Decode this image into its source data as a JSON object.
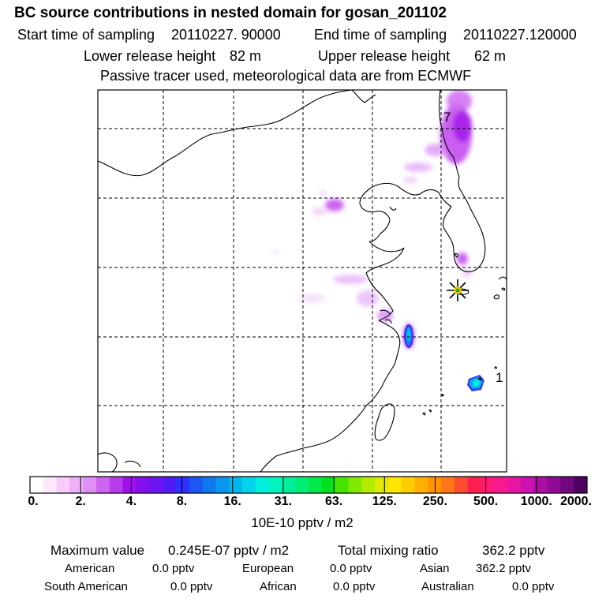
{
  "header": {
    "title": "BC  source contributions in nested domain for gosan_201102",
    "start_label": "Start time of sampling",
    "start_value": "20110227. 90000",
    "end_label": "End time of sampling",
    "end_value": "20110227.120000",
    "lower_label": "Lower release height",
    "lower_value": "82 m",
    "upper_label": "Upper release height",
    "upper_value": "62 m",
    "tracer_note": "Passive tracer used, meteorological data are from ECMWF"
  },
  "map": {
    "labels": {
      "top": "7",
      "right": "1"
    },
    "station_marker": "star-marker"
  },
  "colorbar": {
    "ticks": [
      "0.",
      "2.",
      "4.",
      "8.",
      "16.",
      "31.",
      "63.",
      "125.",
      "250.",
      "500.",
      "1000.",
      "2000."
    ],
    "colors": [
      "#ffffff",
      "#fce8fc",
      "#f8ccfa",
      "#f0b0f8",
      "#e090f4",
      "#cc66f0",
      "#b83cee",
      "#a010ec",
      "#8410ee",
      "#6c14f2",
      "#4f1cf6",
      "#3030fa",
      "#1e56f4",
      "#1078ee",
      "#0896ee",
      "#00b6f0",
      "#00d6e8",
      "#00f0e0",
      "#00f4c0",
      "#00f09a",
      "#00ee76",
      "#00e84a",
      "#00e020",
      "#44e400",
      "#80ea00",
      "#b4ec00",
      "#e0ea00",
      "#ffe400",
      "#ffcc00",
      "#ffb000",
      "#ff9400",
      "#ff7818",
      "#ff4c30",
      "#ff2050",
      "#ff1a72",
      "#f81890",
      "#e814a4",
      "#cc12b0",
      "#ac0ea4",
      "#900a96",
      "#720880",
      "#4c0460"
    ],
    "units": "10E-10 pptv / m2"
  },
  "stats": {
    "max_label": "Maximum value",
    "max_value": "0.245E-07 pptv / m2",
    "total_label": "Total mixing ratio",
    "total_value": "362.2 pptv",
    "regions": [
      {
        "name": "American",
        "value": "0.0 pptv"
      },
      {
        "name": "European",
        "value": "0.0 pptv"
      },
      {
        "name": "Asian",
        "value": "362.2 pptv"
      },
      {
        "name": "South American",
        "value": "0.0 pptv"
      },
      {
        "name": "African",
        "value": "0.0 pptv"
      },
      {
        "name": "Australian",
        "value": "0.0 pptv"
      }
    ]
  }
}
